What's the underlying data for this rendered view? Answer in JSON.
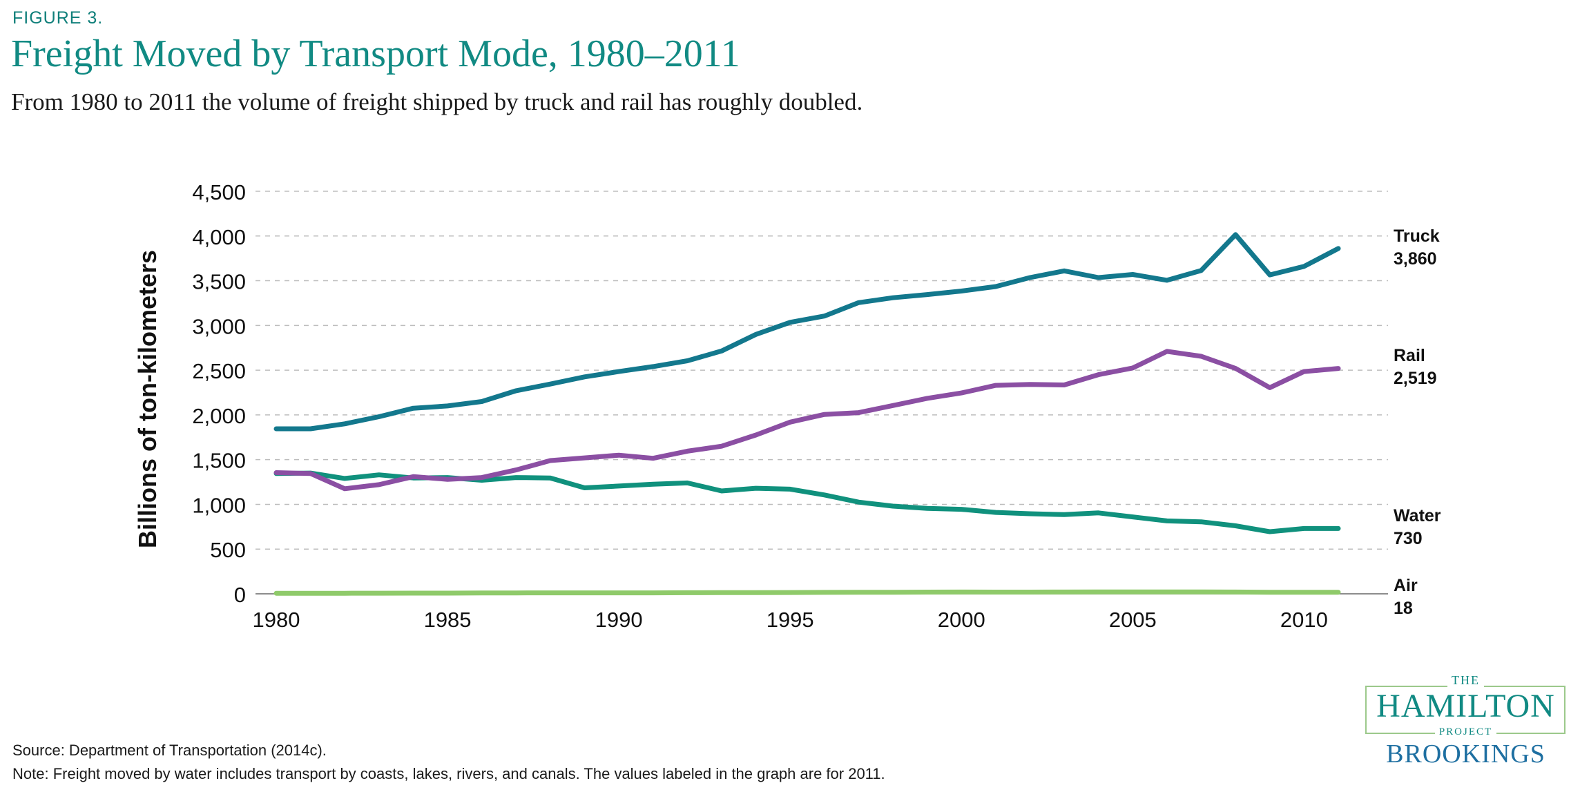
{
  "figure_label": "FIGURE 3.",
  "title": "Freight Moved by Transport Mode, 1980–2011",
  "subtitle": "From 1980 to 2011 the volume of freight shipped by truck and rail has roughly doubled.",
  "source": "Source: Department of Transportation (2014c).",
  "note": "Note: Freight moved by water includes transport by coasts, lakes, rivers, and canals. The values labeled in the graph are for 2011.",
  "logo": {
    "the": "THE",
    "name": "HAMILTON",
    "project": "PROJECT",
    "brookings": "BROOKINGS"
  },
  "colors": {
    "truck": "#13788d",
    "rail": "#8b4fa3",
    "water": "#10917d",
    "air": "#8fca6a",
    "grid": "#bdbdbd",
    "title": "#118a83"
  },
  "chart_data": {
    "type": "line",
    "title": "Freight Moved by Transport Mode, 1980–2011",
    "xlabel": "",
    "ylabel": "Billions of ton-kilometers",
    "ylim": [
      0,
      4500
    ],
    "xlim": [
      1980,
      2011
    ],
    "y_ticks": [
      0,
      500,
      1000,
      1500,
      2000,
      2500,
      3000,
      3500,
      4000,
      4500
    ],
    "y_tick_labels": [
      "0",
      "500",
      "1,000",
      "1,500",
      "2,000",
      "2,500",
      "3,000",
      "3,500",
      "4,000",
      "4,500"
    ],
    "x_ticks": [
      1980,
      1985,
      1990,
      1995,
      2000,
      2005,
      2010
    ],
    "x_tick_labels": [
      "1980",
      "1985",
      "1990",
      "1995",
      "2000",
      "2005",
      "2010"
    ],
    "grid": "horizontal dashed",
    "x": [
      1980,
      1981,
      1982,
      1983,
      1984,
      1985,
      1986,
      1987,
      1988,
      1989,
      1990,
      1991,
      1992,
      1993,
      1994,
      1995,
      1996,
      1997,
      1998,
      1999,
      2000,
      2001,
      2002,
      2003,
      2004,
      2005,
      2006,
      2007,
      2008,
      2009,
      2010,
      2011
    ],
    "series": [
      {
        "name": "Truck",
        "end_label": "3,860",
        "color": "#13788d",
        "values": [
          1845,
          1845,
          1900,
          1980,
          2075,
          2100,
          2150,
          2270,
          2345,
          2425,
          2485,
          2540,
          2605,
          2715,
          2900,
          3035,
          3105,
          3255,
          3310,
          3345,
          3385,
          3435,
          3535,
          3610,
          3535,
          3570,
          3505,
          3615,
          4015,
          3565,
          3660,
          3860
        ]
      },
      {
        "name": "Rail",
        "end_label": "2,519",
        "color": "#8b4fa3",
        "values": [
          1355,
          1345,
          1175,
          1220,
          1310,
          1280,
          1300,
          1385,
          1490,
          1520,
          1550,
          1515,
          1595,
          1650,
          1775,
          1920,
          2005,
          2025,
          2105,
          2185,
          2245,
          2330,
          2340,
          2335,
          2450,
          2525,
          2710,
          2655,
          2520,
          2305,
          2485,
          2519
        ]
      },
      {
        "name": "Water",
        "end_label": "730",
        "color": "#10917d",
        "values": [
          1345,
          1350,
          1290,
          1330,
          1295,
          1300,
          1270,
          1300,
          1295,
          1185,
          1205,
          1225,
          1240,
          1150,
          1180,
          1170,
          1105,
          1025,
          980,
          955,
          945,
          910,
          895,
          885,
          905,
          860,
          815,
          805,
          760,
          695,
          730,
          730
        ]
      },
      {
        "name": "Air",
        "end_label": "18",
        "color": "#8fca6a",
        "values": [
          6,
          6,
          6,
          7,
          8,
          8,
          9,
          10,
          11,
          11,
          11,
          11,
          12,
          13,
          14,
          15,
          16,
          17,
          18,
          19,
          20,
          19,
          19,
          20,
          21,
          21,
          21,
          21,
          20,
          17,
          18,
          18
        ]
      }
    ]
  }
}
